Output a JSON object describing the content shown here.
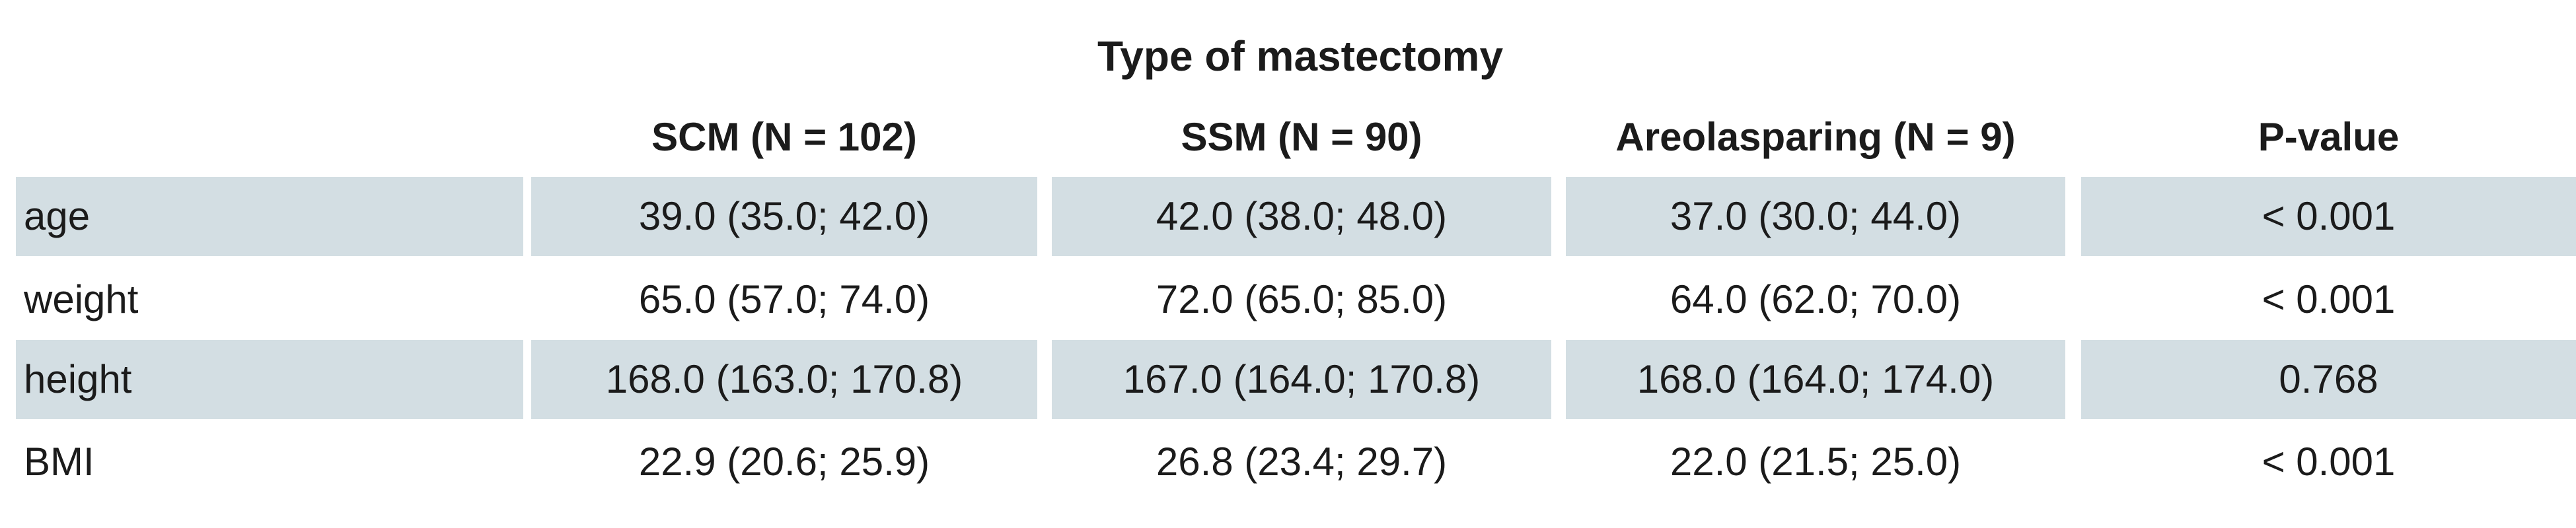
{
  "table": {
    "caption": "Type of mastectomy",
    "columns": [
      "",
      "SCM (N = 102)",
      "SSM (N = 90)",
      "Areolasparing (N = 9)",
      "P-value"
    ],
    "rows": [
      {
        "label": "age",
        "scm": "39.0 (35.0; 42.0)",
        "ssm": "42.0 (38.0; 48.0)",
        "areola": "37.0 (30.0; 44.0)",
        "p": "< 0.001",
        "shaded": true
      },
      {
        "label": "weight",
        "scm": "65.0 (57.0; 74.0)",
        "ssm": "72.0 (65.0; 85.0)",
        "areola": "64.0 (62.0; 70.0)",
        "p": "< 0.001",
        "shaded": false
      },
      {
        "label": "height",
        "scm": "168.0 (163.0; 170.8)",
        "ssm": "167.0 (164.0; 170.8)",
        "areola": "168.0 (164.0; 174.0)",
        "p": "0.768",
        "shaded": true
      },
      {
        "label": "BMI",
        "scm": "22.9 (20.6; 25.9)",
        "ssm": "26.8 (23.4; 29.7)",
        "areola": "22.0 (21.5; 25.0)",
        "p": "< 0.001",
        "shaded": false
      }
    ]
  },
  "colors": {
    "row_shade": "#d3dee3",
    "text": "#1b1b1b"
  }
}
